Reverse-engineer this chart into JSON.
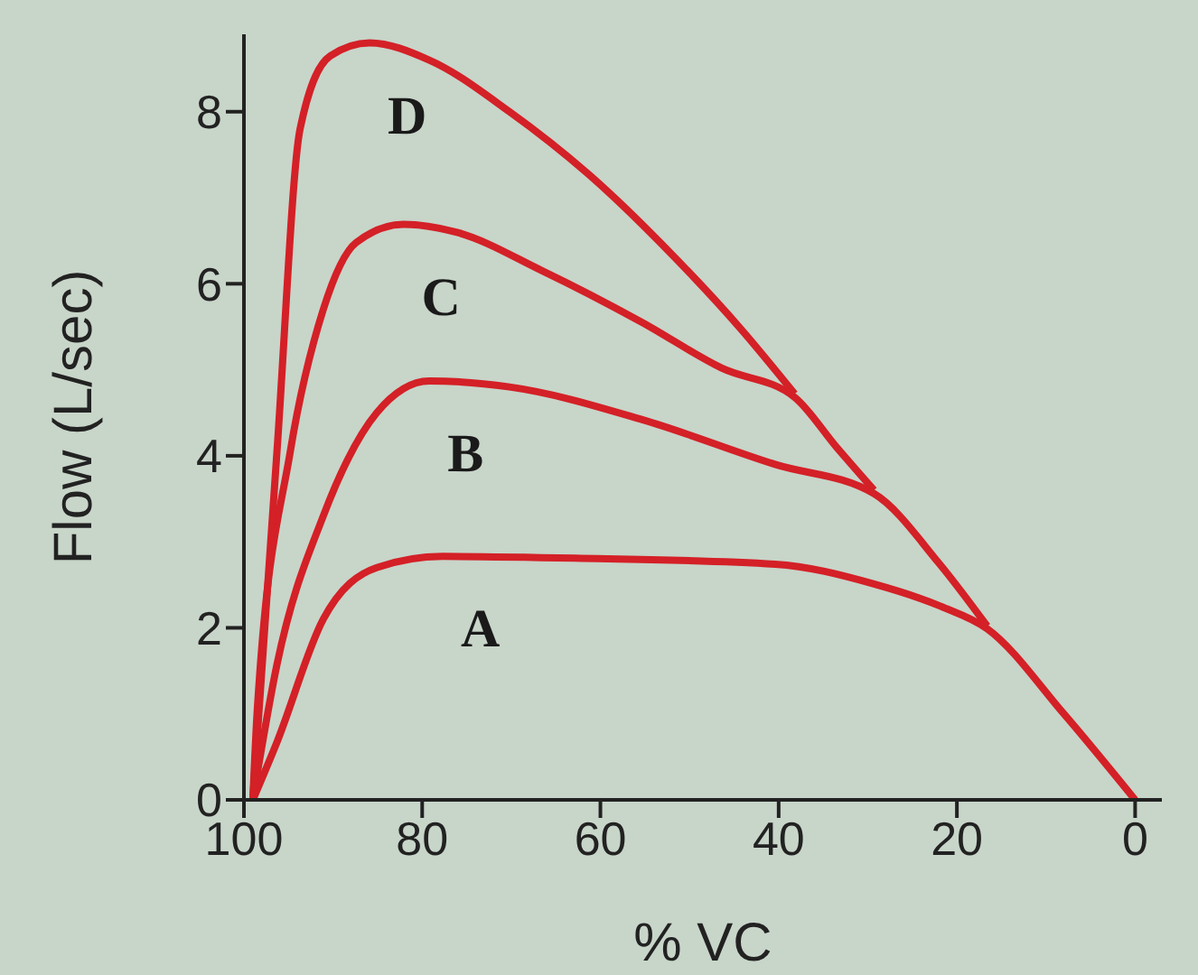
{
  "chart_data": {
    "type": "line",
    "xlabel": "% VC",
    "ylabel": "Flow (L/sec)",
    "xlim": [
      100,
      -3
    ],
    "xticks": [
      100,
      80,
      60,
      40,
      20,
      0
    ],
    "ylim": [
      0,
      8.9
    ],
    "yticks": [
      0,
      2,
      4,
      6,
      8
    ],
    "grid": false,
    "legend": false,
    "marker": "none",
    "line_style": "solid",
    "series": [
      {
        "name": "A",
        "color": "#d42027",
        "x": [
          99,
          96.3,
          91.1,
          85.1,
          77.7,
          62.8,
          40.4,
          29.3,
          21.8,
          16.6,
          8,
          0
        ],
        "values": [
          0,
          0.67,
          2.1,
          2.7,
          2.83,
          2.81,
          2.74,
          2.51,
          2.25,
          1.99,
          1.0,
          0
        ]
      },
      {
        "name": "B",
        "color": "#d42027",
        "x": [
          99,
          96.3,
          91.1,
          85.1,
          79.2,
          70.2,
          55.3,
          40.4,
          29.3,
          22,
          16.6
        ],
        "values": [
          0,
          1.57,
          3.3,
          4.5,
          4.87,
          4.8,
          4.42,
          3.9,
          3.56,
          2.75,
          2.02
        ]
      },
      {
        "name": "C",
        "color": "#d42027",
        "x": [
          99,
          98.5,
          94.8,
          91.1,
          87.4,
          82.1,
          76.2,
          66.5,
          55.3,
          46.4,
          38.2,
          33.5,
          29.3
        ],
        "values": [
          0,
          1.05,
          4.05,
          5.7,
          6.48,
          6.69,
          6.6,
          6.15,
          5.55,
          5.02,
          4.68,
          4.1,
          3.6
        ]
      },
      {
        "name": "D",
        "color": "#d42027",
        "x": [
          99,
          96.3,
          93.7,
          90.3,
          85.9,
          79.2,
          70.2,
          61.3,
          51.6,
          44.2,
          38.2
        ],
        "values": [
          0,
          4.04,
          7.8,
          8.65,
          8.8,
          8.6,
          8.0,
          7.27,
          6.3,
          5.47,
          4.72
        ]
      }
    ]
  }
}
